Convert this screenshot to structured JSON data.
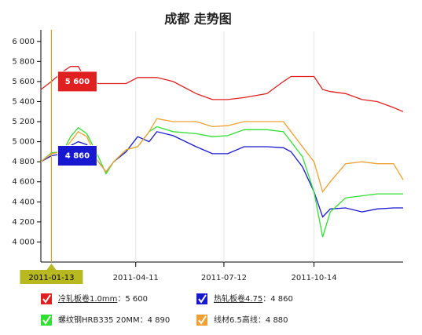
{
  "chart_data": {
    "type": "line",
    "title": "成都 走势图",
    "x": [
      "2011-01-02",
      "2011-01-13",
      "2011-01-25",
      "2011-02-02",
      "2011-02-10",
      "2011-02-19",
      "2011-03-03",
      "2011-03-11",
      "2011-03-19",
      "2011-04-01",
      "2011-04-13",
      "2011-04-25",
      "2011-05-03",
      "2011-05-20",
      "2011-06-13",
      "2011-06-30",
      "2011-07-16",
      "2011-08-02",
      "2011-08-26",
      "2011-09-12",
      "2011-09-20",
      "2011-10-02",
      "2011-10-14",
      "2011-10-23",
      "2011-10-31",
      "2011-11-16",
      "2011-12-03",
      "2011-12-19",
      "2012-01-05",
      "2012-01-15"
    ],
    "xlim": [
      "2011-01-02",
      "2012-01-15"
    ],
    "xticks": [
      "2011-04-11",
      "2011-07-12",
      "2011-10-14"
    ],
    "cursor": "2011-01-13",
    "ylim": [
      3800,
      6100
    ],
    "yticks": [
      {
        "value": 4000,
        "label": "4 000"
      },
      {
        "value": 4200,
        "label": "4 200"
      },
      {
        "value": 4400,
        "label": "4 400"
      },
      {
        "value": 4600,
        "label": "4 600"
      },
      {
        "value": 4800,
        "label": "4 800"
      },
      {
        "value": 5000,
        "label": "5 000"
      },
      {
        "value": 5200,
        "label": "5 200"
      },
      {
        "value": 5400,
        "label": "5 400"
      },
      {
        "value": 5600,
        "label": "5 600"
      },
      {
        "value": 5800,
        "label": "5 800"
      },
      {
        "value": 6000,
        "label": "6 000"
      }
    ],
    "legend_separator": "：",
    "series": [
      {
        "name": "冷轧板卷1.0mm",
        "color": "#e02020",
        "flag": true,
        "cursor_value": {
          "value": 5600,
          "label": "5 600"
        },
        "values": [
          5520,
          5600,
          5700,
          5750,
          5750,
          5600,
          5580,
          5580,
          5580,
          5580,
          5640,
          5640,
          5640,
          5600,
          5480,
          5420,
          5420,
          5440,
          5480,
          5600,
          5650,
          5650,
          5650,
          5520,
          5500,
          5480,
          5420,
          5400,
          5340,
          5300
        ]
      },
      {
        "name": "热轧板卷4.75",
        "color": "#1818d0",
        "flag": true,
        "cursor_value": {
          "value": 4860,
          "label": "4 860"
        },
        "values": [
          4800,
          4860,
          4880,
          4960,
          5000,
          4970,
          4800,
          4700,
          4800,
          4900,
          5050,
          5000,
          5100,
          5060,
          4950,
          4880,
          4880,
          4950,
          4950,
          4940,
          4900,
          4750,
          4500,
          4250,
          4330,
          4340,
          4300,
          4330,
          4340,
          4340
        ]
      },
      {
        "name": "螺纹钢HRB335 20MM",
        "color": "#30e030",
        "flag": false,
        "cursor_value": {
          "value": 4890,
          "label": "4 890"
        },
        "values": [
          4800,
          4890,
          4900,
          5050,
          5140,
          5080,
          4850,
          4680,
          4800,
          4920,
          4950,
          5100,
          5150,
          5100,
          5080,
          5050,
          5060,
          5120,
          5120,
          5100,
          5000,
          4850,
          4500,
          4050,
          4300,
          4440,
          4460,
          4480,
          4480,
          4480
        ]
      },
      {
        "name": "线材6.5高线",
        "color": "#f0a030",
        "flag": false,
        "cursor_value": {
          "value": 4880,
          "label": "4 880"
        },
        "values": [
          4800,
          4880,
          4900,
          5000,
          5100,
          5050,
          4800,
          4700,
          4800,
          4920,
          4950,
          5100,
          5230,
          5200,
          5200,
          5150,
          5160,
          5200,
          5200,
          5200,
          5100,
          4950,
          4800,
          4500,
          4600,
          4780,
          4800,
          4780,
          4780,
          4620
        ]
      }
    ]
  }
}
